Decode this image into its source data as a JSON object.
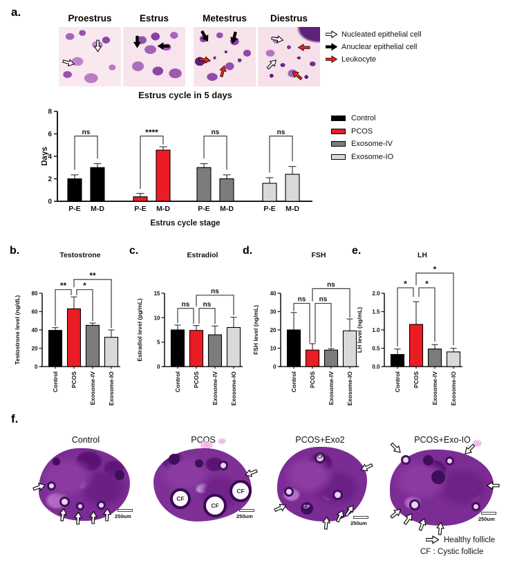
{
  "figure": {
    "panel_letters": {
      "a": "a.",
      "b": "b.",
      "c": "c.",
      "d": "d.",
      "e": "e.",
      "f": "f."
    }
  },
  "panel_a": {
    "stage_titles": [
      "Proestrus",
      "Estrus",
      "Metestrus",
      "Diestrus"
    ],
    "cell_legend": [
      {
        "arrow_color": "#ffffff",
        "label": "Nucleated epithelial cell"
      },
      {
        "arrow_color": "#000000",
        "label": "Anuclear epithelial cell"
      },
      {
        "arrow_color": "#e8231f",
        "label": "Leukocyte"
      }
    ]
  },
  "panel_f": {
    "image_titles": [
      "Control",
      "PCOS",
      "PCOS+Exo2",
      "PCOS+Exo-IO"
    ],
    "scale_bar_label": "250um",
    "cf_label": "CF",
    "legend": {
      "healthy": "Healthy follicle",
      "cystic": "CF : Cystic follicle"
    }
  },
  "colors": {
    "control": "#000000",
    "pcos": "#EC1C24",
    "exosome_iv": "#7C7C7C",
    "exosome_io": "#D9D9D9"
  },
  "chart_data": [
    {
      "id": "estrus",
      "type": "bar",
      "title": "Estrus cycle in 5 days",
      "xlabel": "Estrus cycle stage",
      "ylabel": "Days",
      "ylim": [
        0,
        8
      ],
      "yticks": [
        0,
        2,
        4,
        6,
        8
      ],
      "ytick_labels": [
        "0",
        "2",
        "4",
        "6",
        "8"
      ],
      "bar_labels": [
        "P-E",
        "M-D"
      ],
      "series": [
        {
          "name": "Control",
          "color": "#000000",
          "values": [
            2.0,
            3.0
          ],
          "errors": [
            0.35,
            0.35
          ]
        },
        {
          "name": "PCOS",
          "color": "#EC1C24",
          "values": [
            0.4,
            4.55
          ],
          "errors": [
            0.3,
            0.3
          ]
        },
        {
          "name": "Exosome-IV",
          "color": "#7C7C7C",
          "values": [
            3.0,
            2.0
          ],
          "errors": [
            0.35,
            0.35
          ]
        },
        {
          "name": "Exosome-IO",
          "color": "#D9D9D9",
          "values": [
            1.6,
            2.4
          ],
          "errors": [
            0.5,
            0.7
          ]
        }
      ],
      "significance": [
        {
          "group": 0,
          "label": "ns",
          "y": 5.8,
          "drop": [
            2.8,
            3.8
          ]
        },
        {
          "group": 1,
          "label": "****",
          "y": 5.8,
          "drop": [
            1.1,
            5.05
          ]
        },
        {
          "group": 2,
          "label": "ns",
          "y": 5.8,
          "drop": [
            3.8,
            2.8
          ]
        },
        {
          "group": 3,
          "label": "ns",
          "y": 5.8,
          "drop": [
            2.55,
            3.55
          ]
        }
      ],
      "legend_position": "right"
    },
    {
      "id": "testostrone",
      "type": "bar",
      "title": "Testostrone",
      "xlabel": "",
      "ylabel": "Testostrone level (ng/dL)",
      "ylim": [
        0,
        80
      ],
      "yticks": [
        0,
        20,
        40,
        60,
        80
      ],
      "ytick_labels": [
        "0",
        "20",
        "40",
        "60",
        "80"
      ],
      "categories": [
        "Control",
        "PCOS",
        "Exosome-IV",
        "Exosome-IO"
      ],
      "values": [
        39.5,
        63,
        45,
        32
      ],
      "errors": [
        3,
        13,
        2.5,
        8
      ],
      "bar_colors": [
        "#000000",
        "#EC1C24",
        "#7C7C7C",
        "#D9D9D9"
      ],
      "brackets": [
        {
          "from": 0,
          "to": 1,
          "label": "**",
          "y": 84,
          "drop": [
            44.5,
            78
          ]
        },
        {
          "from": 1,
          "to": 2,
          "label": "*",
          "y": 84,
          "drop": [
            78,
            49.5
          ]
        },
        {
          "from": 1,
          "to": 3,
          "label": "**",
          "y": 95,
          "drop": [
            86.5,
            42
          ]
        }
      ]
    },
    {
      "id": "estradiol",
      "type": "bar",
      "title": "Estradiol",
      "xlabel": "",
      "ylabel": "Estradiol level (pg/mL)",
      "ylim": [
        0,
        15
      ],
      "yticks": [
        0,
        5,
        10,
        15
      ],
      "ytick_labels": [
        "0",
        "5",
        "10",
        "15"
      ],
      "categories": [
        "Control",
        "PCOS",
        "Exosome-IV",
        "Exosome-IO"
      ],
      "values": [
        7.5,
        7.4,
        6.5,
        8.0
      ],
      "errors": [
        1.0,
        1.0,
        1.8,
        2.1
      ],
      "bar_colors": [
        "#000000",
        "#EC1C24",
        "#7C7C7C",
        "#D9D9D9"
      ],
      "brackets": [
        {
          "from": 0,
          "to": 1,
          "label": "ns",
          "y": 11.9,
          "drop": [
            8.9,
            8.8
          ]
        },
        {
          "from": 1,
          "to": 2,
          "label": "ns",
          "y": 11.9,
          "drop": [
            8.8,
            8.7
          ]
        },
        {
          "from": 1,
          "to": 3,
          "label": "ns",
          "y": 14.6,
          "drop": [
            12.3,
            10.5
          ]
        }
      ]
    },
    {
      "id": "fsh",
      "type": "bar",
      "title": "FSH",
      "xlabel": "",
      "ylabel": "FSH level (ng/mL)",
      "ylim": [
        0,
        40
      ],
      "yticks": [
        0,
        10,
        20,
        30,
        40
      ],
      "ytick_labels": [
        "0",
        "10",
        "20",
        "30",
        "40"
      ],
      "categories": [
        "Control",
        "PCOS",
        "Exosome-IV",
        "Exosome-IO"
      ],
      "values": [
        20,
        9,
        9,
        19.5
      ],
      "errors": [
        9.5,
        3.5,
        0.8,
        6.5
      ],
      "bar_colors": [
        "#000000",
        "#EC1C24",
        "#7C7C7C",
        "#D9D9D9"
      ],
      "brackets": [
        {
          "from": 0,
          "to": 1,
          "label": "ns",
          "y": 34.5,
          "drop": [
            30.2,
            13
          ]
        },
        {
          "from": 1,
          "to": 2,
          "label": "ns",
          "y": 34.5,
          "drop": [
            13,
            10.5
          ]
        },
        {
          "from": 1,
          "to": 3,
          "label": "ns",
          "y": 42.5,
          "drop": [
            35.6,
            26.8
          ]
        }
      ]
    },
    {
      "id": "lh",
      "type": "bar",
      "title": "LH",
      "xlabel": "",
      "ylabel": "LH level (ng/mL)",
      "ylim": [
        0,
        2.0
      ],
      "yticks": [
        0,
        0.5,
        1.0,
        1.5,
        2.0
      ],
      "ytick_labels": [
        "0.0",
        "0.5",
        "1.0",
        "1.5",
        "2.0"
      ],
      "categories": [
        "Control",
        "PCOS",
        "Exosome-IV",
        "Exosome-IO"
      ],
      "values": [
        0.33,
        1.15,
        0.48,
        0.4
      ],
      "errors": [
        0.15,
        0.62,
        0.12,
        0.1
      ],
      "bar_colors": [
        "#000000",
        "#EC1C24",
        "#7C7C7C",
        "#D9D9D9"
      ],
      "brackets": [
        {
          "from": 0,
          "to": 1,
          "label": "*",
          "y": 2.15,
          "drop": [
            0.55,
            1.9
          ]
        },
        {
          "from": 1,
          "to": 2,
          "label": "*",
          "y": 2.15,
          "drop": [
            1.9,
            0.68
          ]
        },
        {
          "from": 1,
          "to": 3,
          "label": "*",
          "y": 2.55,
          "drop": [
            2.22,
            0.58
          ]
        }
      ]
    }
  ]
}
